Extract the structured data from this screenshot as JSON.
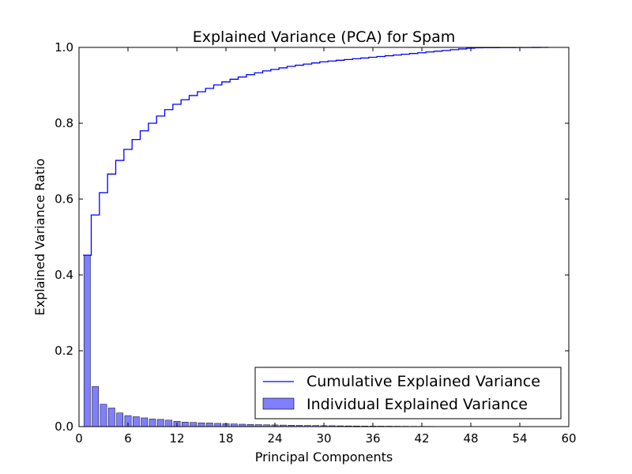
{
  "chart_data": {
    "type": "bar",
    "title": "Explained Variance (PCA) for Spam",
    "xlabel": "Principal Components",
    "ylabel": "Explained Variance Ratio",
    "xlim": [
      0,
      60
    ],
    "ylim": [
      0,
      1.0
    ],
    "xticks": [
      0,
      6,
      12,
      18,
      24,
      30,
      36,
      42,
      48,
      54,
      60
    ],
    "yticks": [
      0.0,
      0.2,
      0.4,
      0.6,
      0.8,
      1.0
    ],
    "xtick_labels": [
      "0",
      "6",
      "12",
      "18",
      "24",
      "30",
      "36",
      "42",
      "48",
      "54",
      "60"
    ],
    "ytick_labels": [
      "0.0",
      "0.2",
      "0.4",
      "0.6",
      "0.8",
      "1.0"
    ],
    "grid": false,
    "legend_position": "lower-right",
    "components": [
      1,
      2,
      3,
      4,
      5,
      6,
      7,
      8,
      9,
      10,
      11,
      12,
      13,
      14,
      15,
      16,
      17,
      18,
      19,
      20,
      21,
      22,
      23,
      24,
      25,
      26,
      27,
      28,
      29,
      30,
      31,
      32,
      33,
      34,
      35,
      36,
      37,
      38,
      39,
      40,
      41,
      42,
      43,
      44,
      45,
      46,
      47,
      48,
      49,
      50,
      51,
      52,
      53,
      54,
      55,
      56,
      57
    ],
    "series": [
      {
        "name": "Individual Explained Variance",
        "kind": "bar",
        "color": "#7f7fff",
        "values": [
          0.452,
          0.106,
          0.059,
          0.049,
          0.036,
          0.029,
          0.026,
          0.023,
          0.02,
          0.019,
          0.017,
          0.014,
          0.012,
          0.011,
          0.01,
          0.0095,
          0.0085,
          0.0078,
          0.007,
          0.0063,
          0.0057,
          0.0052,
          0.0048,
          0.0044,
          0.004,
          0.0036,
          0.0033,
          0.003,
          0.0027,
          0.0025,
          0.0022,
          0.002,
          0.0018,
          0.0016,
          0.0014,
          0.0013,
          0.0012,
          0.0011,
          0.001,
          0.0009,
          0.0008,
          0.0007,
          0.0006,
          0.0005,
          0.0004,
          0.0004,
          0.0003,
          0.0003,
          0.0002,
          0.0002,
          0.0002,
          0.0001,
          0.0001,
          0.0001,
          0.0001,
          0.0001,
          0.0001
        ]
      },
      {
        "name": "Cumulative Explained Variance",
        "kind": "step",
        "color": "#0000ff",
        "values": [
          0.452,
          0.558,
          0.617,
          0.666,
          0.702,
          0.731,
          0.757,
          0.78,
          0.8,
          0.819,
          0.836,
          0.85,
          0.862,
          0.873,
          0.883,
          0.892,
          0.901,
          0.909,
          0.916,
          0.922,
          0.928,
          0.933,
          0.938,
          0.942,
          0.946,
          0.95,
          0.953,
          0.956,
          0.959,
          0.962,
          0.964,
          0.966,
          0.968,
          0.97,
          0.972,
          0.974,
          0.976,
          0.978,
          0.98,
          0.982,
          0.984,
          0.986,
          0.988,
          0.99,
          0.992,
          0.994,
          0.996,
          0.998,
          0.999,
          0.9992,
          0.9994,
          0.9995,
          0.9996,
          0.9997,
          0.9998,
          0.9999,
          1.0
        ]
      }
    ]
  }
}
